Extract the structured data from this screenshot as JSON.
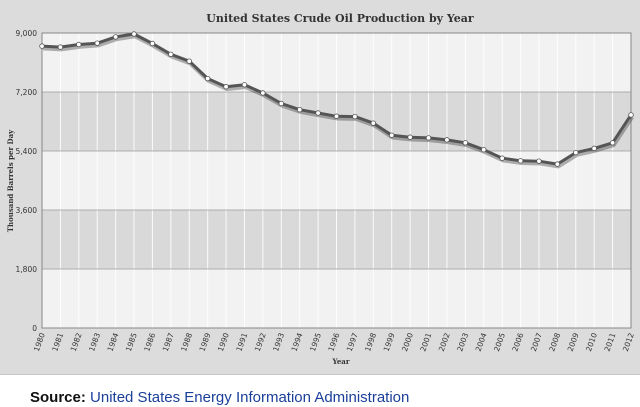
{
  "chart_data": {
    "type": "line",
    "title": "United States Crude Oil Production by Year",
    "xlabel": "Year",
    "ylabel": "Thousand Barrels per Day",
    "ylim": [
      0,
      9000
    ],
    "yticks": [
      0,
      1800,
      3600,
      5400,
      7200,
      9000
    ],
    "ytick_labels": [
      "0",
      "1,800",
      "3,600",
      "5,400",
      "7,200",
      "9,000"
    ],
    "grid": true,
    "legend": "none",
    "categories": [
      "1980",
      "1981",
      "1982",
      "1983",
      "1984",
      "1985",
      "1986",
      "1987",
      "1988",
      "1989",
      "1990",
      "1991",
      "1992",
      "1993",
      "1994",
      "1995",
      "1996",
      "1997",
      "1998",
      "1999",
      "2000",
      "2001",
      "2002",
      "2003",
      "2004",
      "2005",
      "2006",
      "2007",
      "2008",
      "2009",
      "2010",
      "2011",
      "2012"
    ],
    "series": [
      {
        "name": "Crude Oil Production",
        "values": [
          8600,
          8570,
          8650,
          8690,
          8880,
          8970,
          8680,
          8350,
          8140,
          7610,
          7360,
          7420,
          7170,
          6850,
          6660,
          6560,
          6460,
          6450,
          6250,
          5880,
          5820,
          5800,
          5740,
          5650,
          5440,
          5180,
          5100,
          5090,
          5000,
          5350,
          5480,
          5650,
          6500
        ],
        "color": "#555555"
      }
    ]
  },
  "source": {
    "label": "Source:",
    "link_text": "United States Energy Information Administration"
  }
}
